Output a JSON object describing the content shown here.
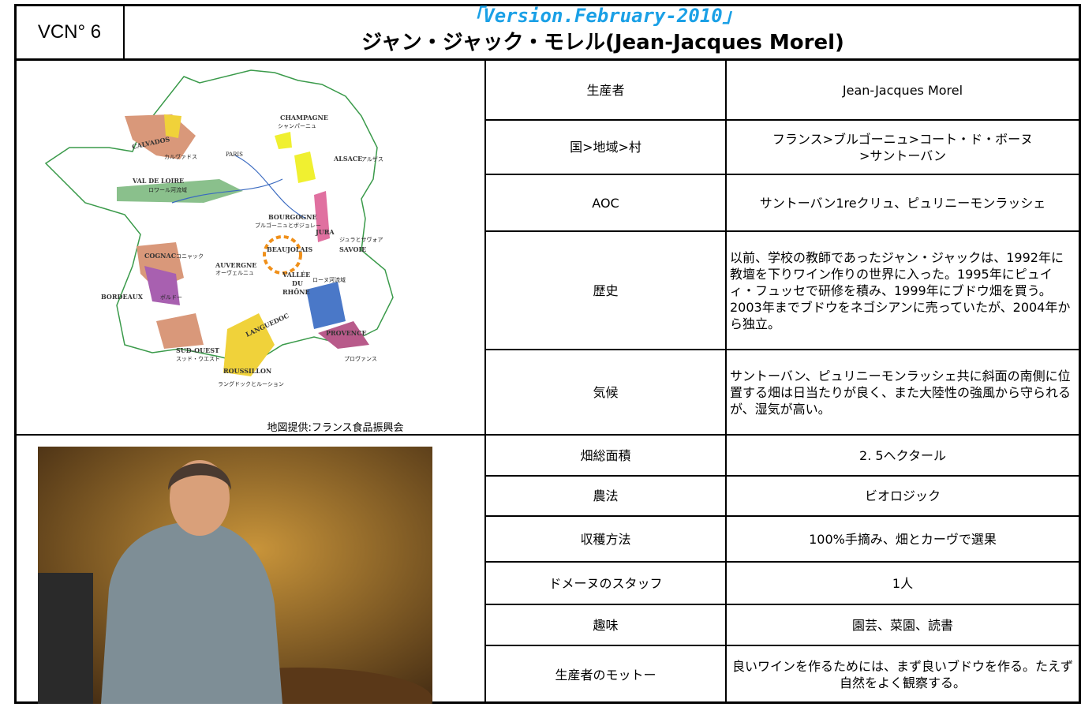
{
  "header": {
    "id": "VCN° 6",
    "version": "「Version.February-2010」",
    "title": "ジャン・ジャック・モレル(Jean-Jacques Morel)"
  },
  "map": {
    "labels": [
      "CHAMPAGNE",
      "シャンパーニュ",
      "ALSACE",
      "アルザス",
      "CALVADOS",
      "カルヴァドス",
      "PARIS",
      "VAL DE LOIRE",
      "ロワール河流域",
      "BOURGOGNE",
      "ブルゴーニュとボジョレー",
      "JURA",
      "ジュラとサヴォア",
      "SAVOIE",
      "BEAUJOLAIS",
      "COGNAC",
      "コニャック",
      "AUVERGNE",
      "オーヴェルニュ",
      "VALLÉE",
      "DU",
      "RHÔNE",
      "ローヌ河流域",
      "BORDEAUX",
      "ボルドー",
      "LANGUEDOC",
      "PROVENCE",
      "プロヴァンス",
      "SUD-OUEST",
      "スッド・ウエスト",
      "ROUSSILLON",
      "ラングドックとルーション"
    ],
    "credit": "地図提供:フランス食品振興会"
  },
  "table": {
    "rows": [
      [
        "生産者",
        "Jean-Jacques Morel"
      ],
      [
        "国>地域>村",
        "フランス>ブルゴーニュ>コート・ド・ボーヌ\n>サントーバン"
      ],
      [
        "AOC",
        "サントーバン1reクリュ、ピュリニーモンラッシェ"
      ],
      [
        "歴史",
        "以前、学校の教師であったジャン・ジャックは、1992年に教壇を下りワイン作りの世界に入った。1995年にピュイィ・フュッセで研修を積み、1999年にブドウ畑を買う。2003年までブドウをネゴシアンに売っていたが、2004年から独立。"
      ],
      [
        "気候",
        "サントーバン、ピュリニーモンラッシェ共に斜面の南側に位置する畑は日当たりが良く、また大陸性の強風から守られるが、湿気が高い。"
      ],
      [
        "畑総面積",
        "2. 5ヘクタール"
      ],
      [
        "農法",
        "ビオロジック"
      ],
      [
        "収穫方法",
        "100%手摘み、畑とカーヴで選果"
      ],
      [
        "ドメーヌのスタッフ",
        "1人"
      ],
      [
        "趣味",
        "園芸、菜園、読書"
      ],
      [
        "生産者のモットー",
        "良いワインを作るためには、まず良いブドウを作る。たえず自然をよく観察する。"
      ]
    ]
  }
}
